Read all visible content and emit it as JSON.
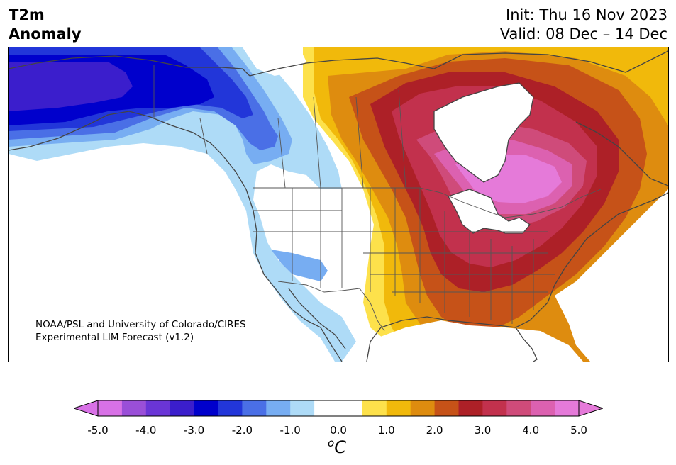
{
  "title": {
    "line1": "T2m",
    "line2": "Anomaly"
  },
  "dates": {
    "init": "Init: Thu 16 Nov 2023",
    "valid": "Valid: 08 Dec – 14 Dec"
  },
  "credit": {
    "line1": "NOAA/PSL and University of Colorado/CIRES",
    "line2": "Experimental LIM Forecast (v1.2)"
  },
  "colorbar": {
    "unit_base": "C",
    "unit_sup": "o",
    "ticks": [
      "-5.0",
      "-4.0",
      "-3.0",
      "-2.0",
      "-1.0",
      "0.0",
      "1.0",
      "2.0",
      "3.0",
      "4.0",
      "5.0"
    ],
    "colors": [
      "#d871e6",
      "#9a4fd8",
      "#6a35d6",
      "#3b1ecc",
      "#0000cc",
      "#2236d9",
      "#4a6fe6",
      "#77adf2",
      "#aedbf7",
      "#ffffff",
      "#ffffff",
      "#fde14b",
      "#f1b90b",
      "#de8c0f",
      "#c65218",
      "#ad2027",
      "#c2314d",
      "#cf4b7a",
      "#dc61b0",
      "#e57ad9"
    ],
    "under_color": "#d871e6",
    "over_color": "#e57ad9"
  },
  "map_colors": {
    "blue_4": "#3b1ecc",
    "blue_3": "#0000cc",
    "blue_25": "#2236d9",
    "blue_2": "#4a6fe6",
    "blue_15": "#77adf2",
    "blue_1": "#aedbf7",
    "white": "#ffffff",
    "yellow": "#fde14b",
    "gold": "#f1b90b",
    "orange": "#de8c0f",
    "dkorange": "#c65218",
    "red": "#ad2027",
    "crimson": "#c2314d",
    "rose": "#cf4b7a",
    "pink": "#dc61b0",
    "magenta": "#e57ad9",
    "coast": "#444444"
  }
}
